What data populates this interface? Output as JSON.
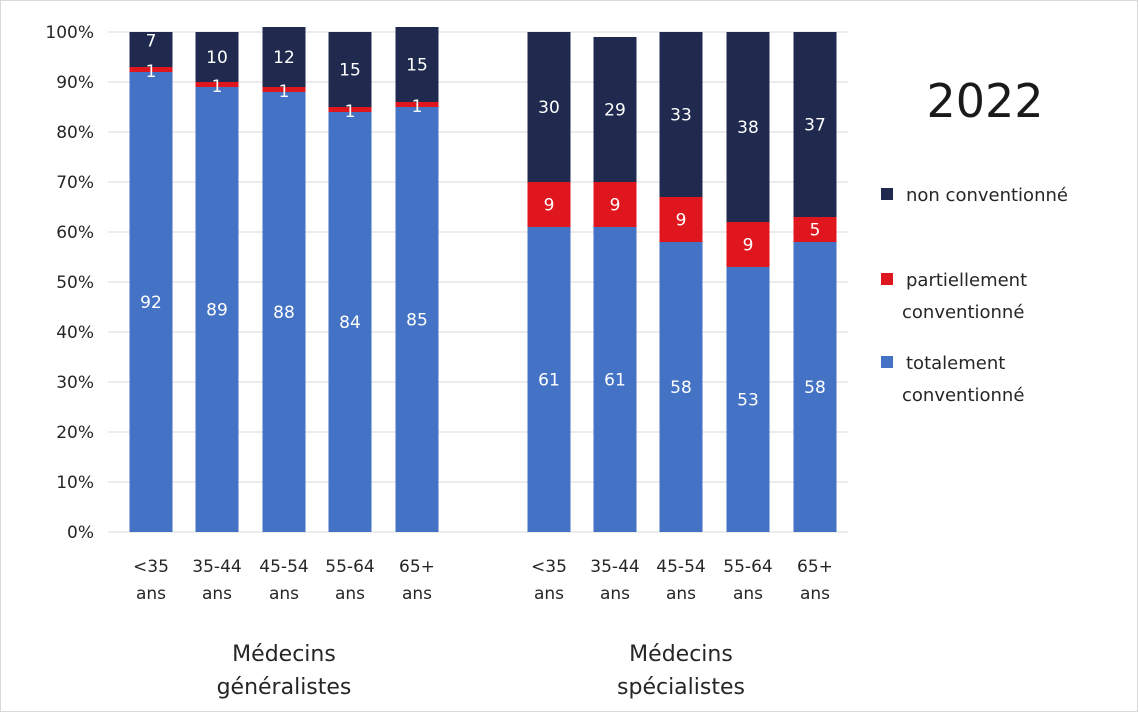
{
  "chart_data": {
    "type": "bar",
    "stacked": true,
    "percent": true,
    "title": "2022",
    "ylim": [
      0,
      100
    ],
    "yticks": [
      "0%",
      "10%",
      "20%",
      "30%",
      "40%",
      "50%",
      "60%",
      "70%",
      "80%",
      "90%",
      "100%"
    ],
    "grid": true,
    "legend_position": "right",
    "groups": [
      {
        "name": "Médecins généralistes",
        "name_lines": [
          "Médecins",
          "généralistes"
        ],
        "categories": [
          [
            "<35",
            "ans"
          ],
          [
            "35-44",
            "ans"
          ],
          [
            "45-54",
            "ans"
          ],
          [
            "55-64",
            "ans"
          ],
          [
            "65+",
            "ans"
          ]
        ]
      },
      {
        "name": "Médecins spécialistes",
        "name_lines": [
          "Médecins",
          "spécialistes"
        ],
        "categories": [
          [
            "<35",
            "ans"
          ],
          [
            "35-44",
            "ans"
          ],
          [
            "45-54",
            "ans"
          ],
          [
            "55-64",
            "ans"
          ],
          [
            "65+",
            "ans"
          ]
        ]
      }
    ],
    "series": [
      {
        "name": "totalement conventionné",
        "legend_lines": [
          "totalement",
          "conventionné"
        ],
        "color": "#4472c4",
        "values": [
          92,
          89,
          88,
          84,
          85,
          61,
          61,
          58,
          53,
          58
        ]
      },
      {
        "name": "partiellement conventionné",
        "legend_lines": [
          "partiellement",
          "conventionné"
        ],
        "color": "#e0161e",
        "values": [
          1,
          1,
          1,
          1,
          1,
          9,
          9,
          9,
          9,
          5
        ]
      },
      {
        "name": "non conventionné",
        "legend_lines": [
          "non conventionné"
        ],
        "color": "#1f2a4e",
        "values": [
          7,
          10,
          12,
          15,
          15,
          30,
          29,
          33,
          38,
          37
        ]
      }
    ],
    "legend_order": [
      2,
      1,
      0
    ]
  }
}
